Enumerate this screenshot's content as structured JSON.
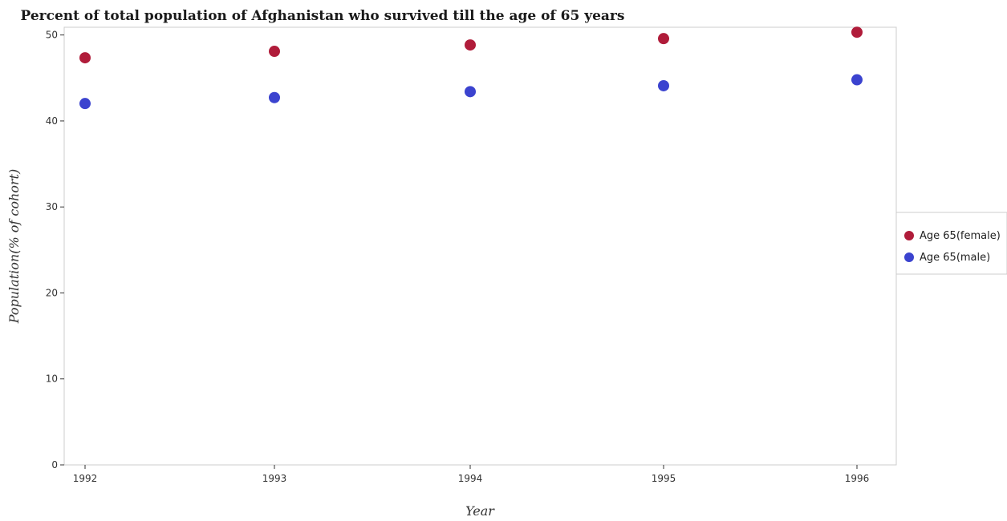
{
  "chart_data": {
    "type": "scatter",
    "title": "Percent of total population of Afghanistan who survived till the age of 65 years",
    "xlabel": "Year",
    "ylabel": "Population(% of cohort)",
    "categories": [
      "1992",
      "1993",
      "1994",
      "1995",
      "1996"
    ],
    "ylim": [
      0,
      50.9
    ],
    "yticks": [
      0,
      10,
      20,
      30,
      40,
      50
    ],
    "grid": false,
    "legend_position": "right",
    "series": [
      {
        "name": "Age 65(female)",
        "color": "#b01c3a",
        "values": [
          47.35,
          48.1,
          48.84,
          49.58,
          50.32
        ]
      },
      {
        "name": "Age 65(male)",
        "color": "#3b43cf",
        "values": [
          42.03,
          42.72,
          43.41,
          44.1,
          44.79
        ]
      }
    ]
  }
}
